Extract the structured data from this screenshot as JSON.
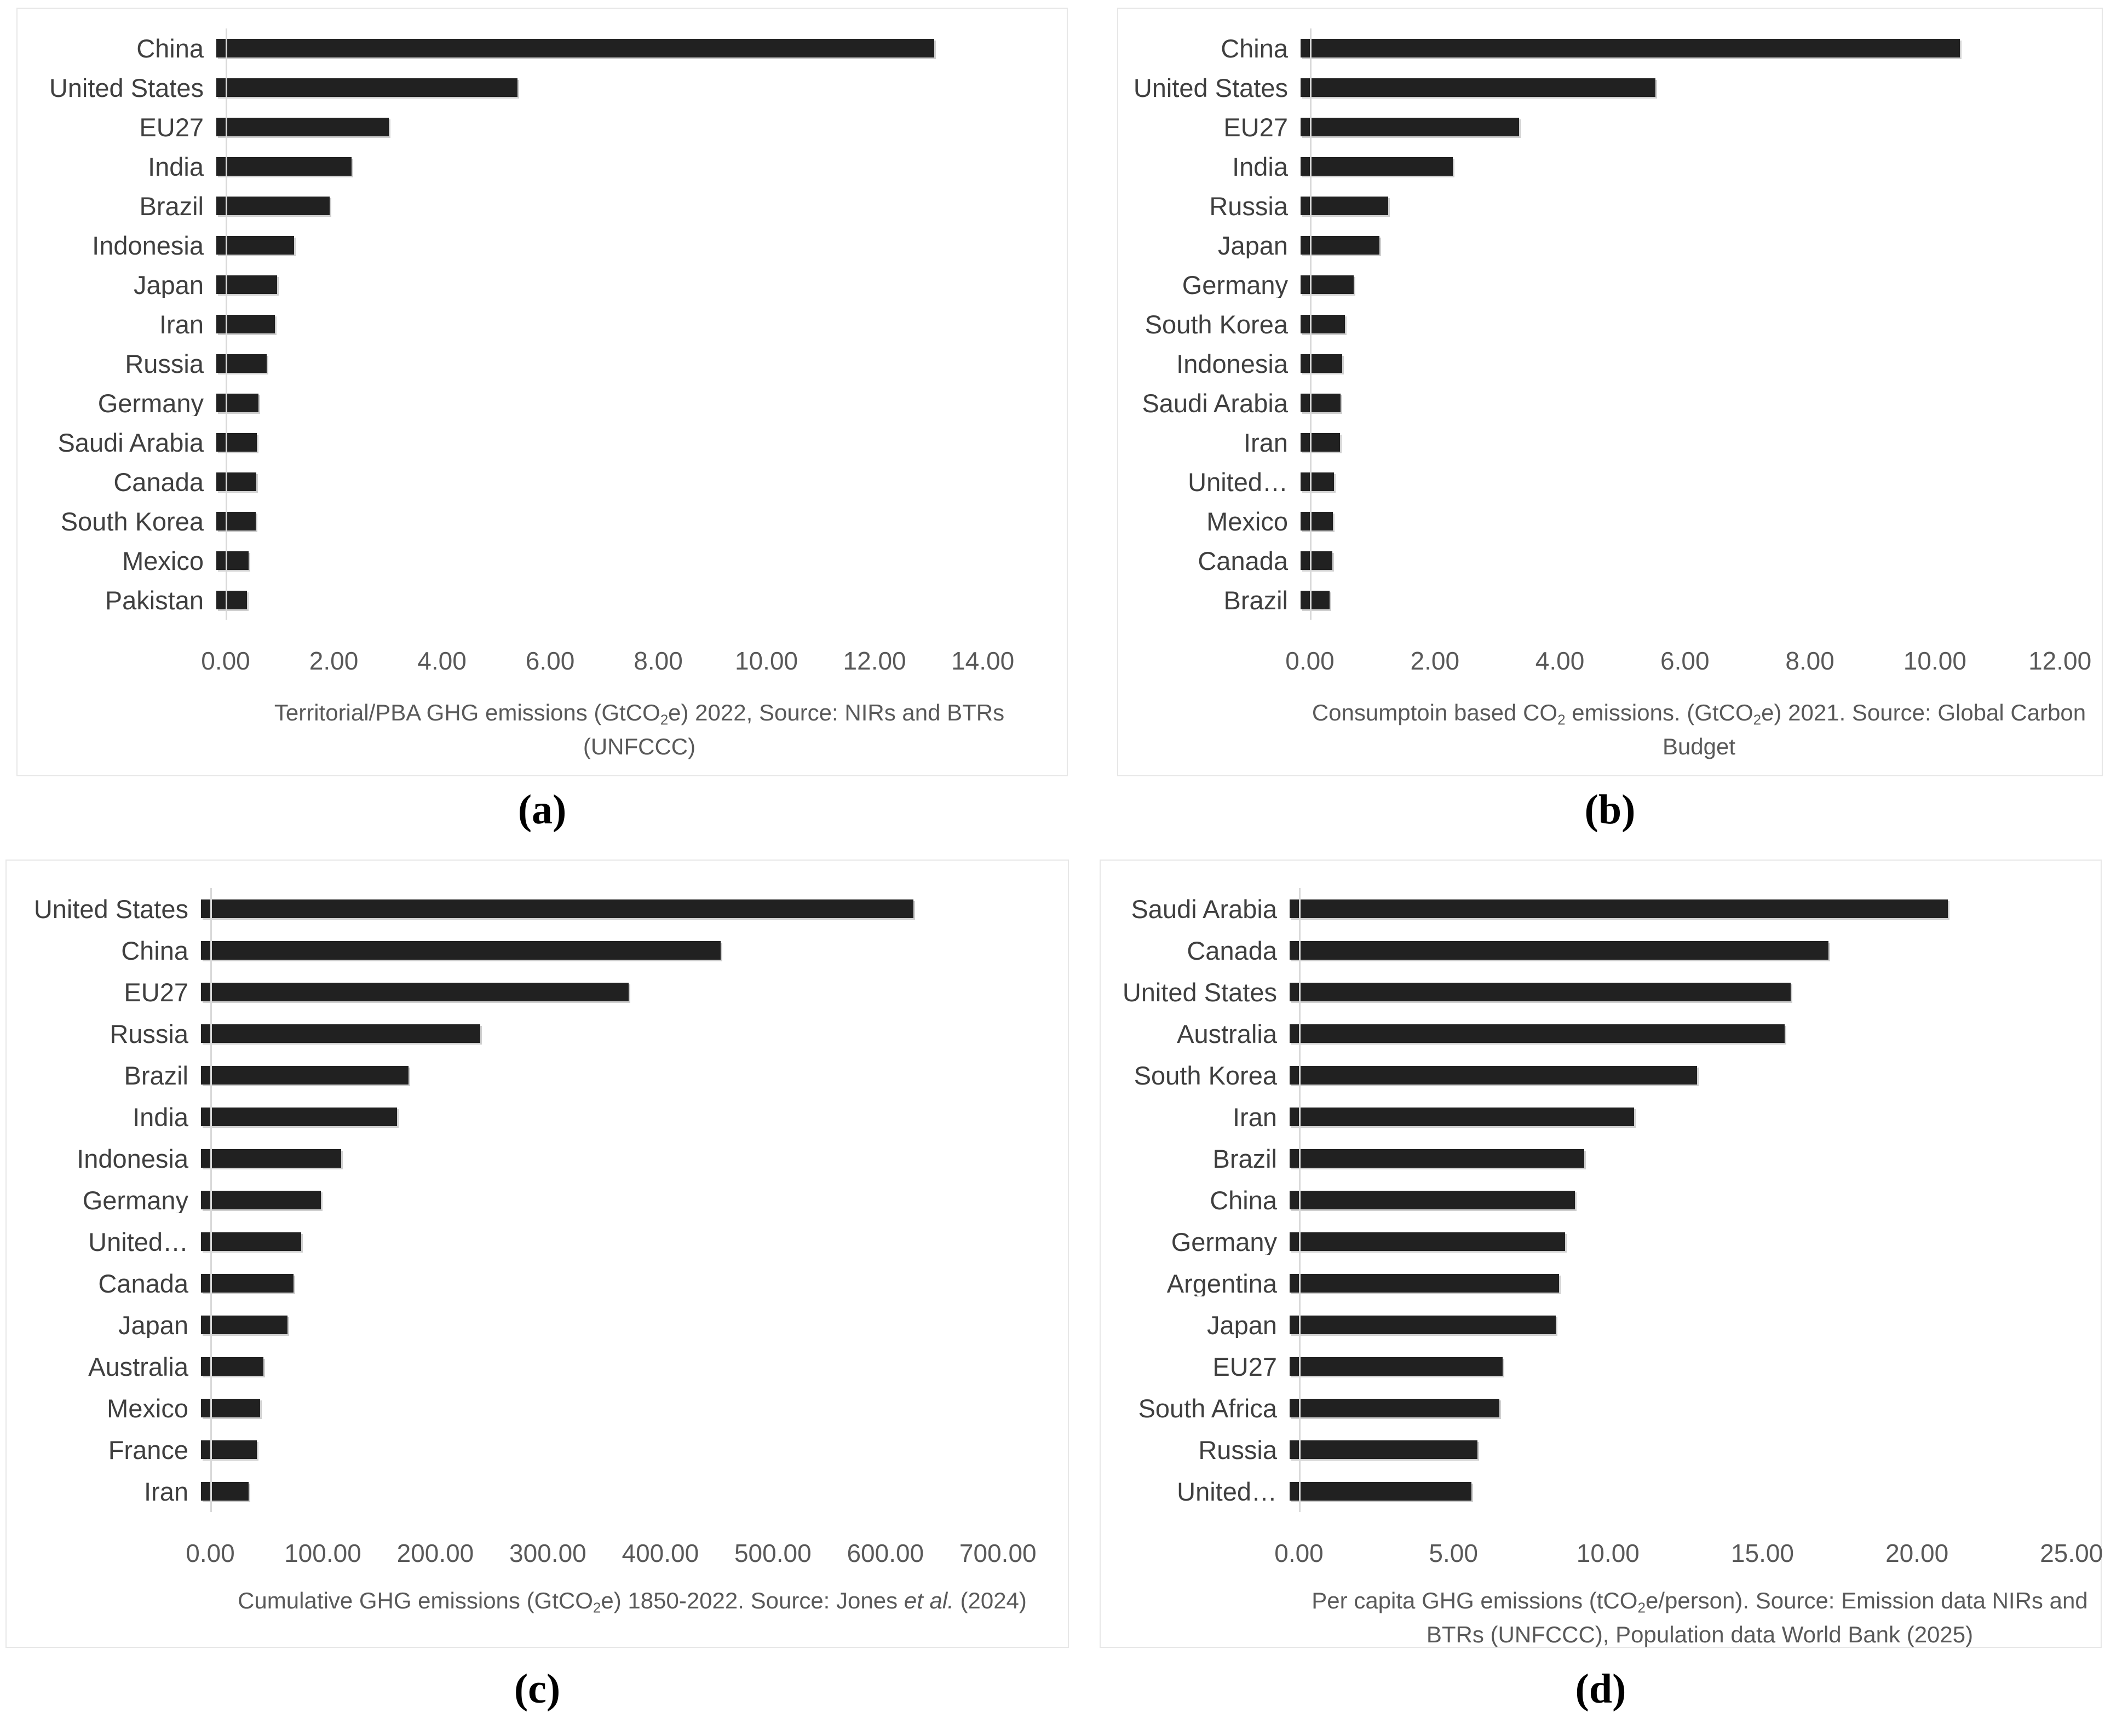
{
  "figure": {
    "description": "Four horizontal bar charts comparing greenhouse gas emissions by country/region",
    "background": "#ffffff"
  },
  "colors": {
    "bar": "#212121",
    "bar_shadow": "rgba(150,150,150,0.45)",
    "axis_line": "#d9d9d9",
    "category_label": "#3f3f3f",
    "tick_label": "#595959",
    "title_text": "#595959",
    "panel_border": "#e7e7e7",
    "caption_text": "#000000"
  },
  "chart_data": [
    {
      "type": "bar",
      "orientation": "horizontal",
      "caption": "(a)",
      "title_segments": [
        {
          "text": "Territorial/PBA GHG emissions (GtCO"
        },
        {
          "text": "2",
          "style": "subscript"
        },
        {
          "text": "e) 2022, Source: NIRs and BTRs (UNFCCC)"
        }
      ],
      "categories": [
        "China",
        "United States",
        "EU27",
        "India",
        "Brazil",
        "Indonesia",
        "Japan",
        "Iran",
        "Russia",
        "Germany",
        "Saudi Arabia",
        "Canada",
        "South Korea",
        "Mexico",
        "Pakistan"
      ],
      "values": [
        13.1,
        5.5,
        3.15,
        2.47,
        2.07,
        1.42,
        1.11,
        1.07,
        0.92,
        0.77,
        0.74,
        0.73,
        0.72,
        0.59,
        0.56
      ],
      "xticks": [
        "0.00",
        "2.00",
        "4.00",
        "6.00",
        "8.00",
        "10.00",
        "12.00",
        "14.00"
      ],
      "tick_values": [
        0,
        2,
        4,
        6,
        8,
        10,
        12,
        14
      ],
      "xlim": [
        0,
        15.3
      ],
      "axis_max": 15.3,
      "unit": "GtCO2e",
      "grid": false,
      "legend": false
    },
    {
      "type": "bar",
      "orientation": "horizontal",
      "caption": "(b)",
      "title_segments": [
        {
          "text": "Consumptoin based CO"
        },
        {
          "text": "2",
          "style": "subscript"
        },
        {
          "text": " emissions. (GtCO"
        },
        {
          "text": "2",
          "style": "subscript"
        },
        {
          "text": "e) 2021. Source: Global Carbon Budget"
        }
      ],
      "categories": [
        "China",
        "United States",
        "EU27",
        "India",
        "Russia",
        "Japan",
        "Germany",
        "South Korea",
        "Indonesia",
        "Saudi Arabia",
        "Iran",
        "United…",
        "Mexico",
        "Canada",
        "Brazil"
      ],
      "values": [
        10.4,
        5.6,
        3.45,
        2.4,
        1.38,
        1.24,
        0.84,
        0.7,
        0.66,
        0.63,
        0.62,
        0.53,
        0.51,
        0.5,
        0.46
      ],
      "xticks": [
        "0.00",
        "2.00",
        "4.00",
        "6.00",
        "8.00",
        "10.00",
        "12.00"
      ],
      "tick_values": [
        0,
        2,
        4,
        6,
        8,
        10,
        12
      ],
      "xlim": [
        0,
        12.45
      ],
      "axis_max": 12.45,
      "unit": "GtCO2e",
      "grid": false,
      "legend": false
    },
    {
      "type": "bar",
      "orientation": "horizontal",
      "caption": "(c)",
      "title_segments": [
        {
          "text": "Cumulative GHG emissions (GtCO"
        },
        {
          "text": "2",
          "style": "subscript"
        },
        {
          "text": "e) 1850-2022. Source: Jones "
        },
        {
          "text": "et al.",
          "style": "italic"
        },
        {
          "text": " (2024)"
        }
      ],
      "categories": [
        "United States",
        "China",
        "EU27",
        "Russia",
        "Brazil",
        "India",
        "Indonesia",
        "Germany",
        "United…",
        "Canada",
        "Japan",
        "Australia",
        "Mexico",
        "France",
        "Iran"
      ],
      "values": [
        625,
        456,
        375,
        245,
        182,
        172,
        123,
        105,
        88,
        81,
        76,
        55,
        52,
        49,
        42
      ],
      "xticks": [
        "0.00",
        "100.00",
        "200.00",
        "300.00",
        "400.00",
        "500.00",
        "600.00",
        "700.00"
      ],
      "tick_values": [
        0,
        100,
        200,
        300,
        400,
        500,
        600,
        700
      ],
      "xlim": [
        0,
        750
      ],
      "axis_max": 750,
      "unit": "GtCO2e",
      "grid": false,
      "legend": false
    },
    {
      "type": "bar",
      "orientation": "horizontal",
      "caption": "(d)",
      "title_segments": [
        {
          "text": "Per capita GHG emissions (tCO"
        },
        {
          "text": "2",
          "style": "subscript"
        },
        {
          "text": "e/person). Source: Emission data NIRs and BTRs (UNFCCC), Population data World Bank (2025)"
        }
      ],
      "categories": [
        "Saudi Arabia",
        "Canada",
        "United States",
        "Australia",
        "South Korea",
        "Iran",
        "Brazil",
        "China",
        "Germany",
        "Argentina",
        "Japan",
        "EU27",
        "South Africa",
        "Russia",
        "United…"
      ],
      "values": [
        21.0,
        17.2,
        16.0,
        15.8,
        13.0,
        11.0,
        9.4,
        9.1,
        8.8,
        8.6,
        8.5,
        6.8,
        6.7,
        6.0,
        5.8
      ],
      "xticks": [
        "0.00",
        "5.00",
        "10.00",
        "15.00",
        "20.00",
        "25.00"
      ],
      "tick_values": [
        0,
        5,
        10,
        15,
        20,
        25
      ],
      "xlim": [
        0,
        25.5
      ],
      "axis_max": 25.5,
      "unit": "tCO2e/person",
      "grid": false,
      "legend": false
    }
  ]
}
